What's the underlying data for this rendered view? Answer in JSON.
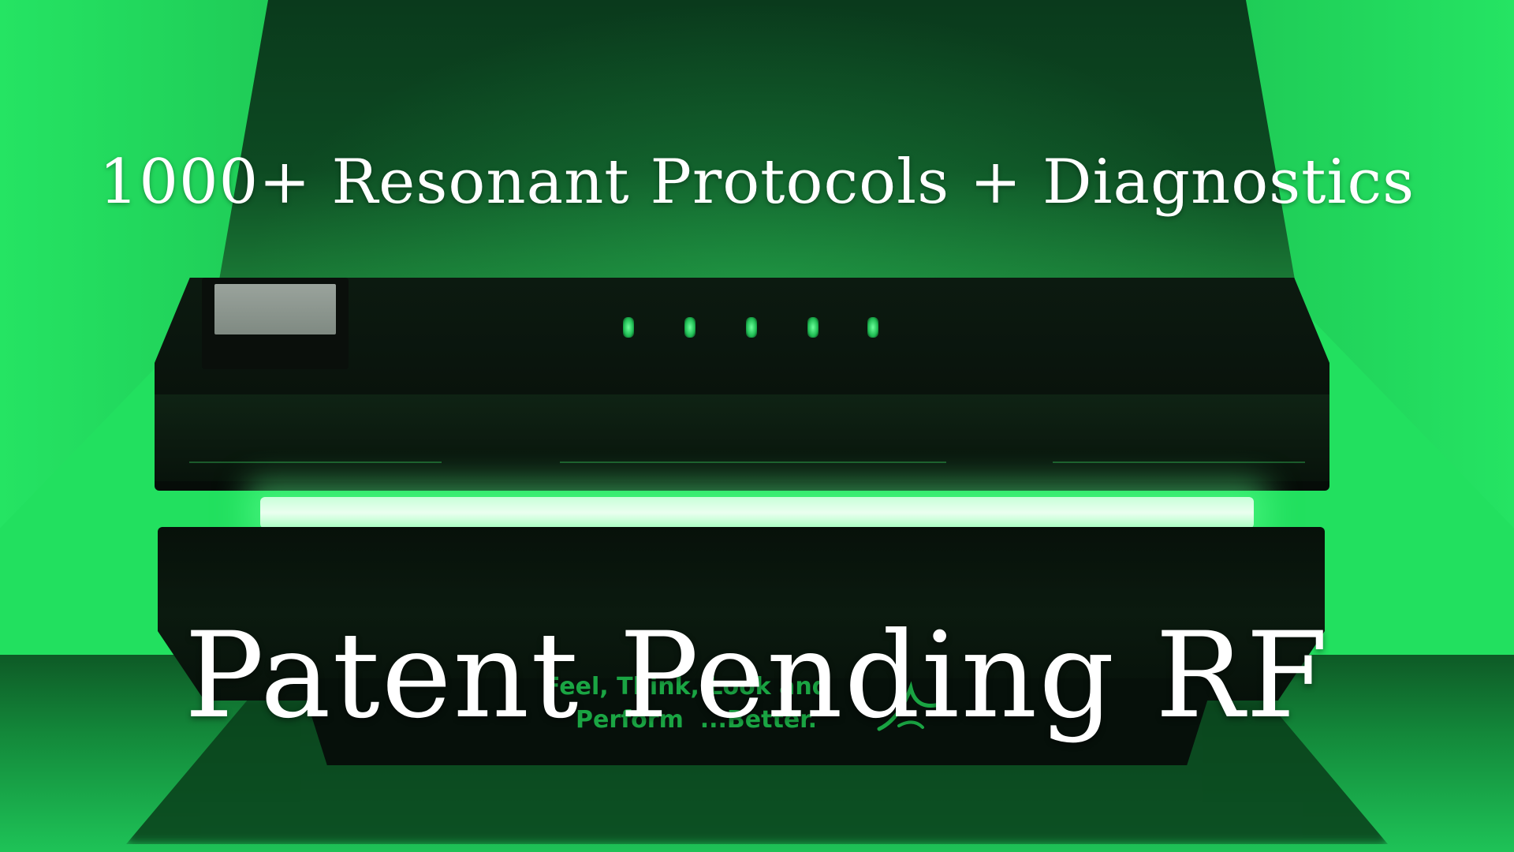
{
  "headline": "1000+ Resonant Protocols + Diagnostics",
  "subheadline": "Patent Pending RF",
  "device": {
    "slogan_line1": "Feel, Think, Look and",
    "slogan_line2": "Perform  ...Better.",
    "logo_icon": "device-logo-icon"
  },
  "colors": {
    "background_green": "#22e05f",
    "light_glow": "#eaffef",
    "slogan_green": "#1aa543",
    "text_white": "#ffffff"
  }
}
